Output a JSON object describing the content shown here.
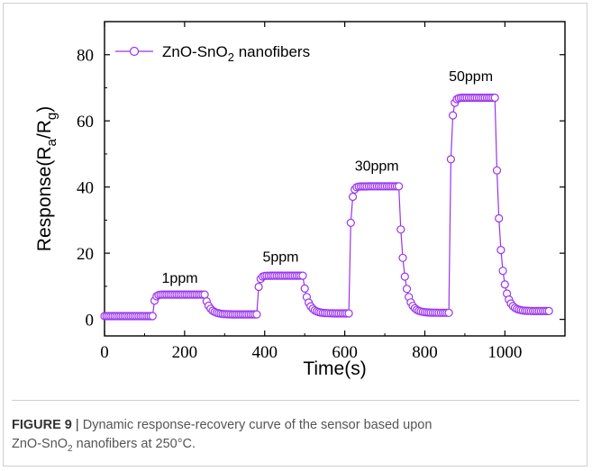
{
  "chart_data": {
    "type": "line",
    "title": "",
    "xlabel": "Time(s)",
    "ylabel": {
      "base": "Response(R",
      "sub_a": "a",
      "mid": "/R",
      "sub_g": "g",
      "end": ")"
    },
    "xlim": [
      0,
      1150
    ],
    "ylim": [
      -5,
      90
    ],
    "xticks": [
      0,
      200,
      400,
      600,
      800,
      1000
    ],
    "yticks": [
      0,
      20,
      40,
      60,
      80
    ],
    "grid": false,
    "legend_position": "top-left",
    "color": "#9a33ee",
    "series": [
      {
        "name": {
          "base": "ZnO-SnO",
          "sub": "2",
          "end": " nanofibers"
        },
        "marker": "open-circle",
        "sample_step_s": 5,
        "cycles": [
          {
            "label": "1ppm",
            "on": 120,
            "off": 250,
            "level": 7.5
          },
          {
            "label": "5ppm",
            "on": 380,
            "off": 495,
            "level": 13.2
          },
          {
            "label": "30ppm",
            "on": 610,
            "off": 735,
            "level": 40.2
          },
          {
            "label": "50ppm",
            "on": 860,
            "off": 975,
            "level": 67.0
          }
        ],
        "baselines": [
          {
            "from": 0,
            "to": 120,
            "value": 1.0
          },
          {
            "from": 250,
            "to": 380,
            "value": 1.5
          },
          {
            "from": 495,
            "to": 610,
            "value": 1.8
          },
          {
            "from": 735,
            "to": 860,
            "value": 2.0
          },
          {
            "from": 975,
            "to": 1110,
            "value": 2.5
          }
        ],
        "end_time": 1110
      }
    ],
    "annotations": [
      {
        "text": "1ppm",
        "x": 188,
        "y": 11
      },
      {
        "text": "5ppm",
        "x": 440,
        "y": 17.5
      },
      {
        "text": "30ppm",
        "x": 680,
        "y": 45
      },
      {
        "text": "50ppm",
        "x": 915,
        "y": 72
      }
    ]
  },
  "caption": {
    "label": "FIGURE 9",
    "separator": "|",
    "line1": "Dynamic response-recovery curve of the sensor based upon",
    "line2_a": "ZnO-SnO",
    "line2_sub": "2",
    "line2_b": " nanofibers at 250°C."
  }
}
